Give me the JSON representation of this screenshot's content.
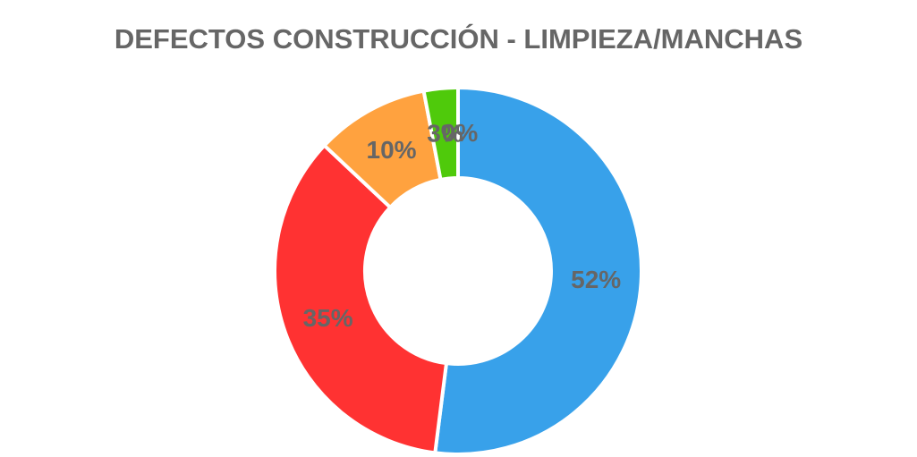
{
  "chart_data": {
    "type": "pie",
    "subtype": "donut",
    "title": "DEFECTOS CONSTRUCCIÓN - LIMPIEZA/MANCHAS",
    "categories": [
      "",
      "",
      "",
      ""
    ],
    "values": [
      52,
      35,
      10,
      3
    ],
    "labels": [
      "52%",
      "35%",
      "10%",
      "3%"
    ],
    "overlapping_labels": [
      "0%"
    ],
    "colors": [
      "#38a1ea",
      "#ff3232",
      "#ffa23f",
      "#4fca0b"
    ],
    "legend": "none",
    "start_angle": "12 o'clock",
    "direction": "clockwise"
  }
}
